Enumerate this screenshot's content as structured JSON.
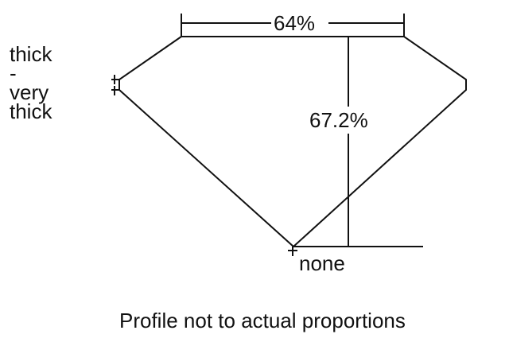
{
  "girdle_label": [
    "thick",
    "-",
    "very",
    "thick"
  ],
  "table_percent": "64%",
  "depth_percent": "67.2%",
  "culet_label": "none",
  "footnote": "Profile not to actual proportions"
}
